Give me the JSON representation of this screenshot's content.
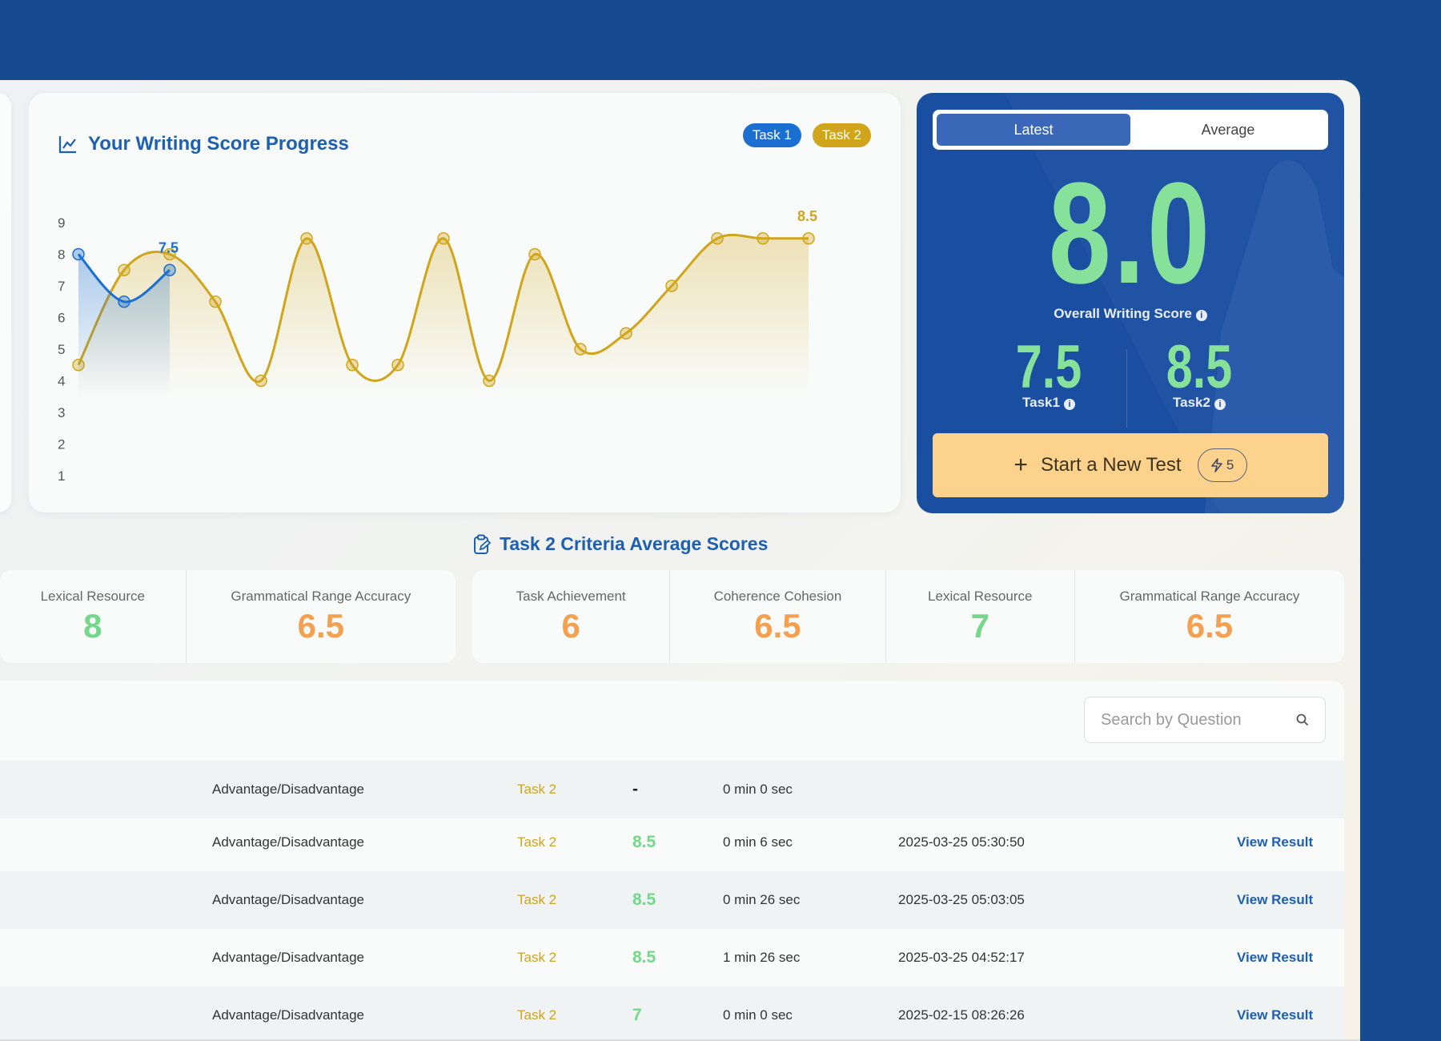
{
  "chart_card": {
    "title": "Your Writing Score Progress",
    "legend": [
      {
        "label": "Task 1",
        "color": "#1b6fd1"
      },
      {
        "label": "Task 2",
        "color": "#d0a51b"
      }
    ]
  },
  "chart_data": {
    "type": "line",
    "y_ticks": [
      "1",
      "2",
      "3",
      "4",
      "5",
      "6",
      "7",
      "8",
      "9"
    ],
    "ylim": [
      1,
      9
    ],
    "grid": false,
    "legend_position": "top-right",
    "series": [
      {
        "name": "Task 1",
        "color": "#1b6fd1",
        "values": [
          8,
          6.5,
          7.5
        ],
        "last_label": "7.5"
      },
      {
        "name": "Task 2",
        "color": "#d0a51b",
        "values": [
          4.5,
          7.5,
          8,
          6.5,
          4,
          8.5,
          4.5,
          4.5,
          8.5,
          4,
          8,
          5,
          5.5,
          7,
          8.5,
          8.5,
          8.5
        ],
        "last_label": "8.5"
      }
    ]
  },
  "score_panel": {
    "tabs": {
      "latest": "Latest",
      "average": "Average"
    },
    "overall_score": "8.0",
    "overall_label": "Overall Writing Score",
    "task1_score": "7.5",
    "task1_label": "Task1",
    "task2_score": "8.5",
    "task2_label": "Task2",
    "start_button": "Start a New Test",
    "credits": "5",
    "info_glyph": "i"
  },
  "criteria": {
    "title": "Task 2 Criteria Average Scores",
    "left_group": [
      {
        "label": "Lexical Resource",
        "value": "8",
        "color": "green"
      },
      {
        "label": "Grammatical Range Accuracy",
        "value": "6.5",
        "color": "orange"
      }
    ],
    "right_group": [
      {
        "label": "Task Achievement",
        "value": "6",
        "color": "orange"
      },
      {
        "label": "Coherence Cohesion",
        "value": "6.5",
        "color": "orange"
      },
      {
        "label": "Lexical Resource",
        "value": "7",
        "color": "green"
      },
      {
        "label": "Grammatical Range Accuracy",
        "value": "6.5",
        "color": "orange"
      }
    ]
  },
  "history": {
    "search_placeholder": "Search by Question",
    "rows": [
      {
        "type": "Advantage/Disadvantage",
        "task": "Task 2",
        "score": "-",
        "time": "0 min 0 sec",
        "date": "",
        "action": ""
      },
      {
        "type": "Advantage/Disadvantage",
        "task": "Task 2",
        "score": "8.5",
        "time": "0 min 6 sec",
        "date": "2025-03-25 05:30:50",
        "action": "View Result"
      },
      {
        "type": "Advantage/Disadvantage",
        "task": "Task 2",
        "score": "8.5",
        "time": "0 min 26 sec",
        "date": "2025-03-25 05:03:05",
        "action": "View Result"
      },
      {
        "type": "Advantage/Disadvantage",
        "task": "Task 2",
        "score": "8.5",
        "time": "1 min 26 sec",
        "date": "2025-03-25 04:52:17",
        "action": "View Result"
      },
      {
        "type": "Advantage/Disadvantage",
        "task": "Task 2",
        "score": "7",
        "time": "0 min 0 sec",
        "date": "2025-02-15 08:26:26",
        "action": "View Result"
      }
    ]
  }
}
